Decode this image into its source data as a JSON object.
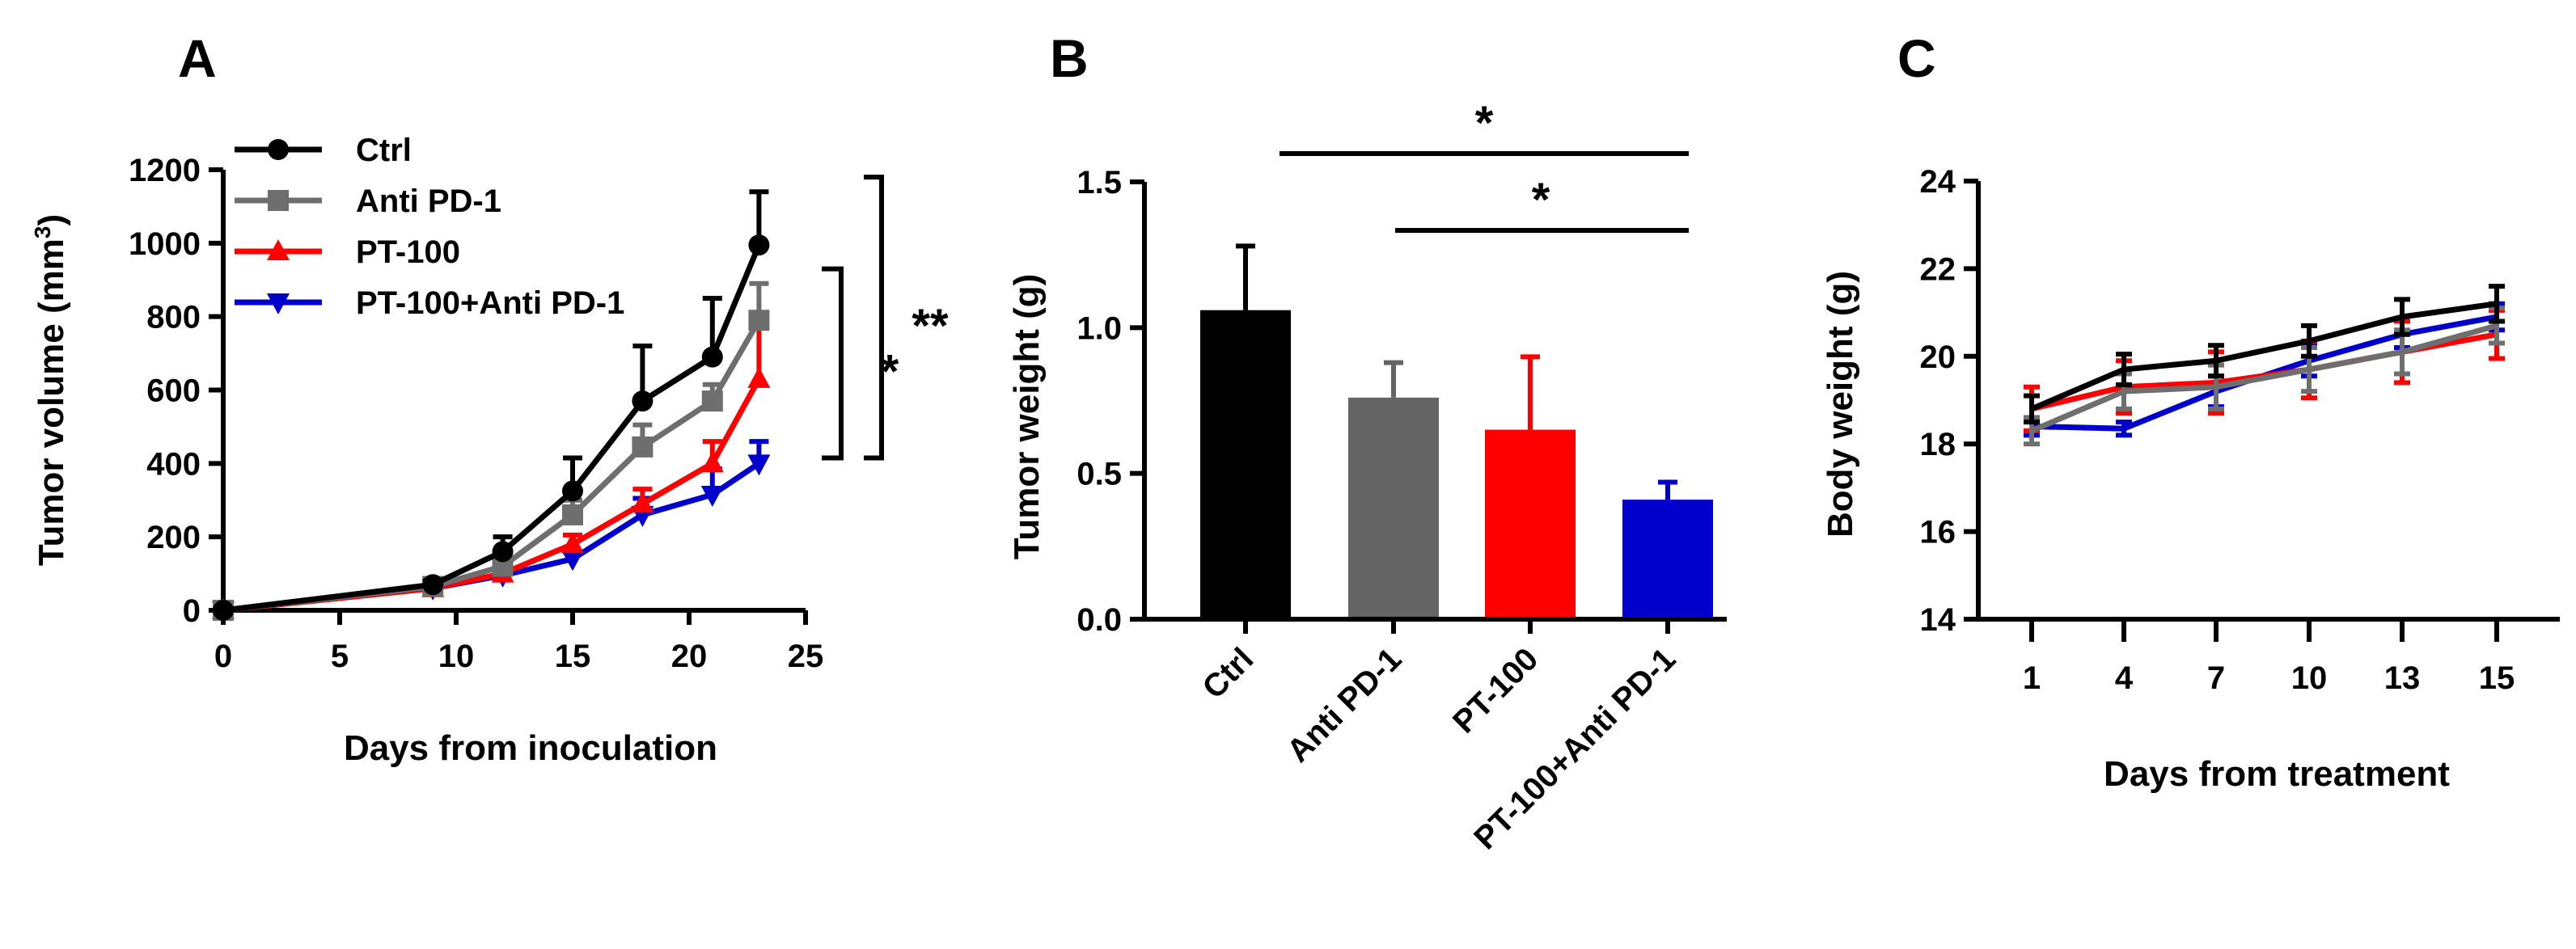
{
  "chart_data": [
    {
      "panel": "A",
      "type": "line",
      "xlabel": "Days from inoculation",
      "ylabel_main": "Tumor volume (mm",
      "ylabel_sup": "3",
      "ylabel_close": ")",
      "xlim": [
        0,
        25
      ],
      "ylim": [
        0,
        1200
      ],
      "xticks": [
        "0",
        "5",
        "10",
        "15",
        "20",
        "25"
      ],
      "yticks": [
        "0",
        "200",
        "400",
        "600",
        "800",
        "1000",
        "1200"
      ],
      "x": [
        0,
        9,
        12,
        15,
        18,
        21,
        23
      ],
      "series": [
        {
          "name": "PT-100+Anti PD-1",
          "color": "#0000cc",
          "marker": "triangle-down",
          "values": [
            0,
            60,
            95,
            140,
            260,
            315,
            400
          ],
          "errors": [
            0,
            10,
            15,
            20,
            45,
            70,
            60
          ]
        },
        {
          "name": "PT-100",
          "color": "#ff0000",
          "marker": "triangle-up",
          "values": [
            0,
            60,
            100,
            180,
            290,
            400,
            630
          ],
          "errors": [
            0,
            10,
            15,
            25,
            40,
            60,
            150
          ]
        },
        {
          "name": "Anti PD-1",
          "color": "#6e6e6e",
          "marker": "square",
          "values": [
            0,
            65,
            120,
            260,
            445,
            570,
            790
          ],
          "errors": [
            0,
            10,
            30,
            40,
            60,
            45,
            100
          ]
        },
        {
          "name": "Ctrl",
          "color": "#000000",
          "marker": "circle",
          "values": [
            0,
            70,
            160,
            325,
            570,
            690,
            995
          ],
          "errors": [
            0,
            10,
            40,
            90,
            150,
            160,
            145
          ]
        }
      ],
      "legend_order": [
        "Ctrl",
        "Anti PD-1",
        "PT-100",
        "PT-100+Anti PD-1"
      ],
      "annotations": [
        {
          "label": "**",
          "from": 415,
          "to": 1180
        },
        {
          "label": "*",
          "from": 415,
          "to": 930
        }
      ]
    },
    {
      "panel": "B",
      "type": "bar",
      "ylabel": "Tumor weight (g)",
      "ylim": [
        0,
        1.5
      ],
      "yticks": [
        "0.0",
        "0.5",
        "1.0",
        "1.5"
      ],
      "categories": [
        "Ctrl",
        "Anti PD-1",
        "PT-100",
        "PT-100+Anti PD-1"
      ],
      "values": [
        1.06,
        0.76,
        0.65,
        0.41
      ],
      "errors": [
        0.22,
        0.12,
        0.25,
        0.06
      ],
      "colors": [
        "#000000",
        "#646464",
        "#ff0000",
        "#0000cc"
      ],
      "annotations": [
        {
          "label": "*",
          "from": 0,
          "to": 3,
          "level": 1.6
        },
        {
          "label": "*",
          "from": 1,
          "to": 3,
          "level": 1.35
        }
      ]
    },
    {
      "panel": "C",
      "type": "line",
      "xlabel": "Days  from treatment",
      "ylabel": "Body weight (g)",
      "ylim": [
        14,
        24
      ],
      "yticks": [
        "14",
        "16",
        "18",
        "20",
        "22",
        "24"
      ],
      "xticks": [
        "1",
        "4",
        "7",
        "10",
        "13",
        "15"
      ],
      "x": [
        1,
        4,
        7,
        10,
        13,
        15
      ],
      "series": [
        {
          "name": "PT-100+Anti PD-1",
          "color": "#0000cc",
          "values": [
            18.4,
            18.35,
            19.2,
            19.9,
            20.5,
            20.9
          ],
          "errors": [
            0.2,
            0.15,
            0.35,
            0.35,
            0.3,
            0.3
          ]
        },
        {
          "name": "PT-100",
          "color": "#ff0000",
          "values": [
            18.8,
            19.3,
            19.4,
            19.7,
            20.1,
            20.5
          ],
          "errors": [
            0.5,
            0.6,
            0.7,
            0.65,
            0.7,
            0.55
          ]
        },
        {
          "name": "Anti PD-1",
          "color": "#6e6e6e",
          "values": [
            18.3,
            19.2,
            19.3,
            19.7,
            20.1,
            20.7
          ],
          "errors": [
            0.3,
            0.4,
            0.5,
            0.5,
            0.5,
            0.4
          ]
        },
        {
          "name": "Ctrl",
          "color": "#000000",
          "values": [
            18.8,
            19.7,
            19.9,
            20.35,
            20.9,
            21.2
          ],
          "errors": [
            0.3,
            0.35,
            0.35,
            0.35,
            0.4,
            0.4
          ]
        }
      ]
    }
  ],
  "panel_letters": [
    "A",
    "B",
    "C"
  ]
}
